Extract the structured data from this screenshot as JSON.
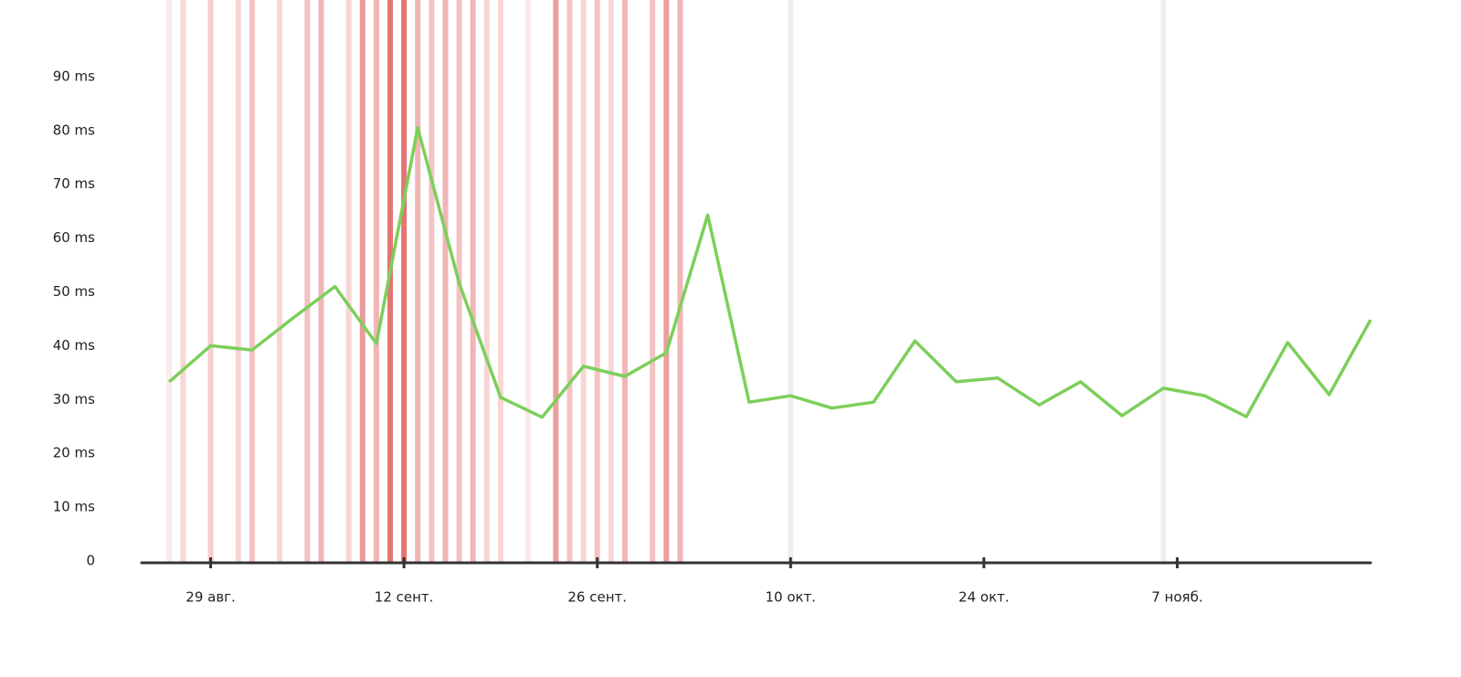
{
  "chart_data": {
    "type": "line",
    "color": "#7ccf5a",
    "x": [
      "08-26",
      "08-29",
      "09-01",
      "09-04",
      "09-07",
      "09-10",
      "09-13",
      "09-16",
      "09-19",
      "09-22",
      "09-25",
      "09-28",
      "10-01",
      "10-04",
      "10-07",
      "10-10",
      "10-13",
      "10-16",
      "10-19",
      "10-22",
      "10-25",
      "10-28",
      "10-31",
      "11-03",
      "11-06",
      "11-09",
      "11-12",
      "11-15",
      "11-18",
      "11-21"
    ],
    "values": [
      33.3,
      40,
      39.2,
      45.2,
      51,
      40.4,
      80.5,
      51.6,
      30.4,
      26.7,
      36.2,
      34.3,
      38.7,
      64.3,
      29.5,
      30.7,
      28.4,
      29.5,
      40.9,
      33.3,
      34,
      29,
      33.3,
      27,
      32.1,
      30.7,
      26.8,
      40.6,
      30.9,
      44.8
    ],
    "xlim": [
      "08-24",
      "11-21"
    ],
    "xticks": [
      {
        "value": "08-29",
        "label": "29 авг."
      },
      {
        "value": "09-12",
        "label": "12 сент."
      },
      {
        "value": "09-26",
        "label": "26 сент."
      },
      {
        "value": "10-10",
        "label": "10 окт."
      },
      {
        "value": "10-24",
        "label": "24 окт."
      },
      {
        "value": "11-07",
        "label": "7 нояб."
      }
    ],
    "ylim": [
      0,
      100
    ],
    "yticks": [
      0,
      {
        "value": 10,
        "label": "10 ms"
      },
      {
        "value": 20,
        "label": "20 ms"
      },
      {
        "value": 30,
        "label": "30 ms"
      },
      {
        "value": 40,
        "label": "40 ms"
      },
      {
        "value": 50,
        "label": "50 ms"
      },
      {
        "value": 60,
        "label": "60 ms"
      },
      {
        "value": 70,
        "label": "70 ms"
      },
      {
        "value": 80,
        "label": "80 ms"
      },
      {
        "value": 90,
        "label": "90 ms"
      }
    ],
    "events": [
      {
        "x": "08-26",
        "color": "#fbeaea"
      },
      {
        "x": "08-27",
        "color": "#f8d6d6"
      },
      {
        "x": "08-29",
        "color": "#f6cccc"
      },
      {
        "x": "08-31",
        "color": "#f8d6d6"
      },
      {
        "x": "09-01",
        "color": "#f4c2c2"
      },
      {
        "x": "09-03",
        "color": "#f8d6d6"
      },
      {
        "x": "09-05",
        "color": "#f4c2c2"
      },
      {
        "x": "09-06",
        "color": "#f1b5b5"
      },
      {
        "x": "09-08",
        "color": "#f8d6d6"
      },
      {
        "x": "09-09",
        "color": "#e99a9a"
      },
      {
        "x": "09-10",
        "color": "#f1b5b5"
      },
      {
        "x": "09-11",
        "color": "#e57373"
      },
      {
        "x": "09-12",
        "color": "#e57373"
      },
      {
        "x": "09-13",
        "color": "#f1b5b5"
      },
      {
        "x": "09-14",
        "color": "#f4c2c2"
      },
      {
        "x": "09-15",
        "color": "#f1b5b5"
      },
      {
        "x": "09-16",
        "color": "#f4c2c2"
      },
      {
        "x": "09-17",
        "color": "#f1b5b5"
      },
      {
        "x": "09-18",
        "color": "#f8d6d6"
      },
      {
        "x": "09-19",
        "color": "#f8d6d6"
      },
      {
        "x": "09-21",
        "color": "#fbeaea"
      },
      {
        "x": "09-23",
        "color": "#ec9f9f"
      },
      {
        "x": "09-24",
        "color": "#f4c2c2"
      },
      {
        "x": "09-25",
        "color": "#f8d6d6"
      },
      {
        "x": "09-26",
        "color": "#f4c2c2"
      },
      {
        "x": "09-27",
        "color": "#f8d6d6"
      },
      {
        "x": "09-28",
        "color": "#f1b5b5"
      },
      {
        "x": "09-30",
        "color": "#f4c2c2"
      },
      {
        "x": "10-01",
        "color": "#ec9f9f"
      },
      {
        "x": "10-02",
        "color": "#f1b5b5"
      },
      {
        "x": "10-10",
        "color": "#eeeeee"
      },
      {
        "x": "11-06",
        "color": "#eeeeee"
      }
    ]
  }
}
